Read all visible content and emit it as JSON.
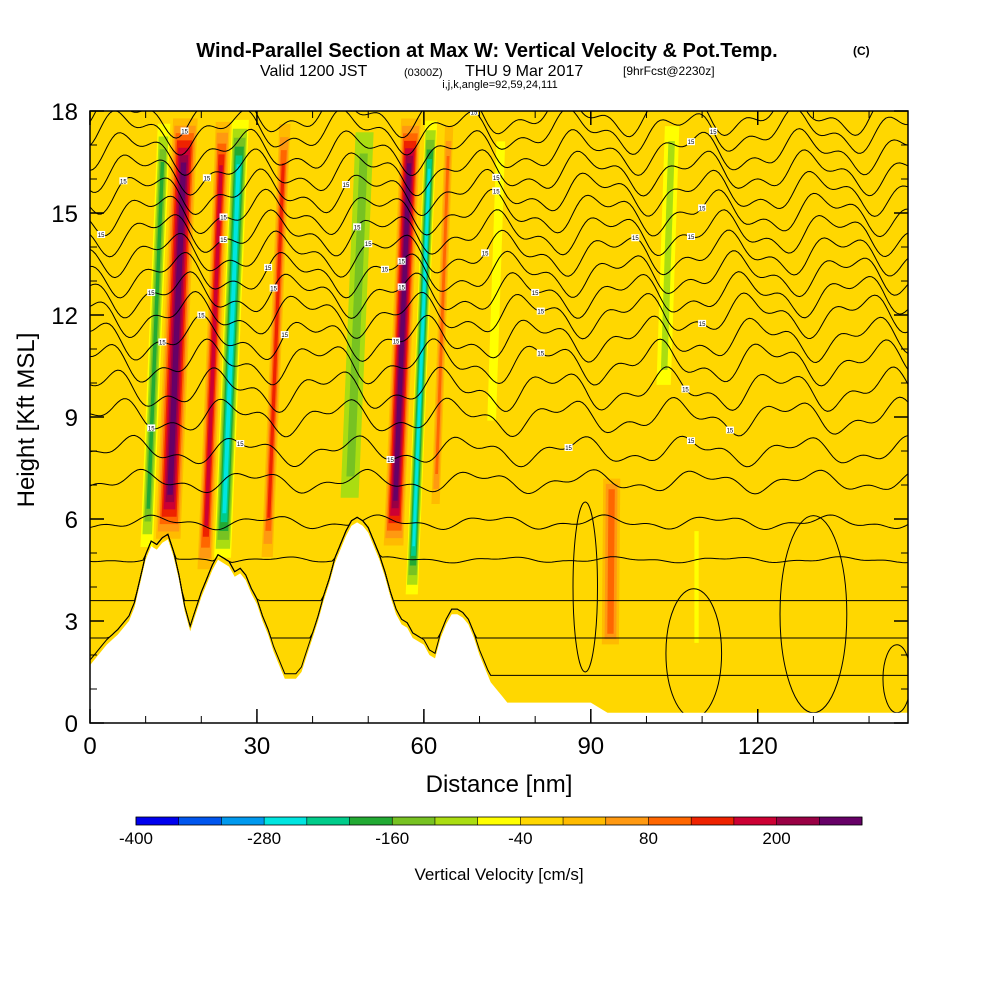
{
  "titles": {
    "main": "Wind-Parallel Section at Max W: Vertical Velocity & Pot.Temp.",
    "main_suffix": "(C)",
    "valid_prefix": "Valid 1200 JST",
    "valid_utc": "(0300Z)",
    "valid_date": "THU 9 Mar 2017",
    "forecast": "[9hrFcst@2230z]",
    "indices": "i,j,k,angle=92,59,24,111"
  },
  "chart_data": {
    "type": "heatmap",
    "xlabel": "Distance [nm]",
    "ylabel": "Height [Kft MSL]",
    "xlim": [
      0,
      147
    ],
    "ylim": [
      0,
      18
    ],
    "x_ticks": [
      0,
      30,
      60,
      90,
      120
    ],
    "x_minor_step": 10,
    "y_ticks": [
      0,
      3,
      6,
      9,
      12,
      15,
      18
    ],
    "y_minor_step": 1,
    "colorbar": {
      "label": "Vertical Velocity [cm/s]",
      "min": -400,
      "step": 40,
      "tick_labels": [
        -400,
        -280,
        -160,
        -40,
        80,
        200
      ],
      "colors": [
        "#0000ee",
        "#0055ee",
        "#0099ee",
        "#00e5e0",
        "#00cc8a",
        "#22aa33",
        "#77c222",
        "#aadd11",
        "#ffff00",
        "#ffd700",
        "#ffbb00",
        "#ff9911",
        "#ff6600",
        "#ee2200",
        "#cc0033",
        "#990044",
        "#660066"
      ]
    },
    "background_color": "#ffd700",
    "terrain": [
      [
        0,
        1.7
      ],
      [
        1.5,
        2
      ],
      [
        3,
        2.3
      ],
      [
        5,
        2.6
      ],
      [
        7,
        3
      ],
      [
        8,
        3.4
      ],
      [
        9,
        4.1
      ],
      [
        10,
        4.8
      ],
      [
        11,
        5.2
      ],
      [
        12,
        5.1
      ],
      [
        13,
        5.3
      ],
      [
        14,
        5.4
      ],
      [
        15,
        4.9
      ],
      [
        16,
        4.2
      ],
      [
        17,
        3.3
      ],
      [
        18,
        2.7
      ],
      [
        19,
        3.2
      ],
      [
        20,
        3.7
      ],
      [
        21,
        4.1
      ],
      [
        22,
        4.5
      ],
      [
        23,
        4.8
      ],
      [
        24,
        4.7
      ],
      [
        25,
        4.6
      ],
      [
        26,
        4.3
      ],
      [
        27,
        4.4
      ],
      [
        28,
        4.2
      ],
      [
        29,
        3.8
      ],
      [
        30,
        3.5
      ],
      [
        31,
        3
      ],
      [
        32,
        2.6
      ],
      [
        33,
        2.1
      ],
      [
        34,
        1.7
      ],
      [
        35,
        1.3
      ],
      [
        36,
        1.3
      ],
      [
        37,
        1.3
      ],
      [
        38,
        1.5
      ],
      [
        39,
        2
      ],
      [
        40,
        2.5
      ],
      [
        41,
        3
      ],
      [
        42,
        3.6
      ],
      [
        43,
        4.1
      ],
      [
        44,
        4.7
      ],
      [
        45,
        5.1
      ],
      [
        46,
        5.5
      ],
      [
        47,
        5.8
      ],
      [
        48,
        5.9
      ],
      [
        49,
        5.8
      ],
      [
        50,
        5.6
      ],
      [
        51,
        5.2
      ],
      [
        52,
        4.8
      ],
      [
        53,
        4.3
      ],
      [
        54,
        3.7
      ],
      [
        55,
        3.2
      ],
      [
        56,
        2.9
      ],
      [
        57,
        2.8
      ],
      [
        58,
        2.5
      ],
      [
        59,
        2.4
      ],
      [
        60,
        2.3
      ],
      [
        61,
        2
      ],
      [
        62,
        1.9
      ],
      [
        63,
        2.5
      ],
      [
        64,
        2.9
      ],
      [
        65,
        3.2
      ],
      [
        66,
        3.2
      ],
      [
        67,
        3.1
      ],
      [
        68,
        2.9
      ],
      [
        69,
        2.5
      ],
      [
        70,
        2
      ],
      [
        71,
        1.6
      ],
      [
        72,
        1.2
      ],
      [
        73,
        1
      ],
      [
        74,
        0.8
      ],
      [
        75,
        0.6
      ],
      [
        85,
        0.6
      ],
      [
        90,
        0.6
      ],
      [
        93,
        0.3
      ],
      [
        100,
        0.3
      ],
      [
        110,
        0.3
      ],
      [
        120,
        0.3
      ],
      [
        130,
        0.3
      ],
      [
        140,
        0.3
      ],
      [
        147,
        0.3
      ]
    ],
    "features": [
      {
        "name": "updraft",
        "x0": 11.5,
        "x1": 16.5,
        "y0": 5.2,
        "y1": 18,
        "slope": 0.25,
        "v": 250
      },
      {
        "name": "downdraft",
        "x0": 8.7,
        "x1": 11.5,
        "y0": 4.8,
        "y1": 18,
        "slope": 0.25,
        "v": -190
      },
      {
        "name": "updraft",
        "x0": 19,
        "x1": 22,
        "y0": 4.2,
        "y1": 18,
        "slope": 0.25,
        "v": 160
      },
      {
        "name": "downdraft",
        "x0": 22,
        "x1": 25.5,
        "y0": 4.6,
        "y1": 18,
        "slope": 0.25,
        "v": -260
      },
      {
        "name": "updraft",
        "x0": 30.5,
        "x1": 33,
        "y0": 4.5,
        "y1": 18,
        "slope": 0.25,
        "v": 120
      },
      {
        "name": "downdraft",
        "x0": 44,
        "x1": 49,
        "y0": 6,
        "y1": 18,
        "slope": 0.25,
        "v": -130
      },
      {
        "name": "updraft",
        "x0": 52.5,
        "x1": 56.5,
        "y0": 5,
        "y1": 18,
        "slope": 0.25,
        "v": 240
      },
      {
        "name": "downdraft",
        "x0": 56.5,
        "x1": 59,
        "y0": 3.5,
        "y1": 18,
        "slope": 0.25,
        "v": -270
      },
      {
        "name": "updraft",
        "x0": 61,
        "x1": 63,
        "y0": 6,
        "y1": 18,
        "slope": 0.22,
        "v": 80
      },
      {
        "name": "downdraft",
        "x0": 70,
        "x1": 74,
        "y0": 8,
        "y1": 18,
        "slope": 0.2,
        "v": -60
      },
      {
        "name": "updraft",
        "x0": 91,
        "x1": 96,
        "y0": 2,
        "y1": 7.5,
        "slope": 0.05,
        "v": 110
      },
      {
        "name": "downdraft",
        "x0": 101,
        "x1": 105,
        "y0": 9.5,
        "y1": 18,
        "slope": 0.2,
        "v": -110
      },
      {
        "name": "downdraft",
        "x0": 108,
        "x1": 110,
        "y0": 2,
        "y1": 6,
        "slope": 0,
        "v": -45
      }
    ],
    "theta_contours": [
      {
        "base": 1.4,
        "labels": []
      },
      {
        "base": 2.5,
        "labels": []
      },
      {
        "base": 3.6,
        "labels": []
      },
      {
        "base": 4.8,
        "labels": []
      },
      {
        "base": 5.9,
        "labels": []
      },
      {
        "base": 7.1,
        "labels": []
      },
      {
        "base": 8,
        "labels": [
          {
            "x": 27,
            "t": "15"
          },
          {
            "x": 54,
            "t": "15"
          },
          {
            "x": 86,
            "t": "15"
          },
          {
            "x": 108,
            "t": "15"
          }
        ]
      },
      {
        "base": 9,
        "labels": [
          {
            "x": 11,
            "t": "15"
          },
          {
            "x": 115,
            "t": "15"
          }
        ]
      },
      {
        "base": 9.8,
        "labels": [
          {
            "x": 107,
            "t": "15"
          }
        ]
      },
      {
        "base": 10.6,
        "labels": [
          {
            "x": 81,
            "t": "15"
          }
        ]
      },
      {
        "base": 11.3,
        "labels": [
          {
            "x": 13,
            "t": "15"
          },
          {
            "x": 20,
            "t": "15"
          },
          {
            "x": 35,
            "t": "15"
          },
          {
            "x": 55,
            "t": "15"
          }
        ]
      },
      {
        "base": 12,
        "labels": [
          {
            "x": 81,
            "t": "15"
          },
          {
            "x": 110,
            "t": "15"
          }
        ]
      },
      {
        "base": 12.6,
        "labels": [
          {
            "x": 11,
            "t": "15"
          },
          {
            "x": 33,
            "t": "15"
          },
          {
            "x": 56,
            "t": "15"
          },
          {
            "x": 80,
            "t": "15"
          }
        ]
      },
      {
        "base": 13.2,
        "labels": [
          {
            "x": 32,
            "t": "15"
          },
          {
            "x": 53,
            "t": "15"
          },
          {
            "x": 56,
            "t": "15"
          }
        ]
      },
      {
        "base": 13.8,
        "labels": [
          {
            "x": 50,
            "t": "15"
          },
          {
            "x": 71,
            "t": "15"
          },
          {
            "x": 98,
            "t": "15"
          }
        ]
      },
      {
        "base": 14.4,
        "labels": [
          {
            "x": 24,
            "t": "15"
          },
          {
            "x": 48,
            "t": "15"
          },
          {
            "x": 108,
            "t": "15"
          }
        ]
      },
      {
        "base": 15,
        "labels": [
          {
            "x": 2,
            "t": "15"
          },
          {
            "x": 24,
            "t": "15"
          },
          {
            "x": 73,
            "t": "15"
          },
          {
            "x": 110,
            "t": "15"
          }
        ]
      },
      {
        "base": 15.6,
        "labels": [
          {
            "x": 6,
            "t": "15"
          },
          {
            "x": 46,
            "t": "15"
          },
          {
            "x": 73,
            "t": "15"
          }
        ]
      },
      {
        "base": 16.2,
        "labels": [
          {
            "x": 21,
            "t": "15"
          }
        ]
      },
      {
        "base": 16.8,
        "labels": [
          {
            "x": 108,
            "t": "15"
          }
        ]
      },
      {
        "base": 17.4,
        "labels": [
          {
            "x": 69,
            "t": "15"
          },
          {
            "x": 112,
            "t": "15"
          }
        ]
      },
      {
        "base": 17.9,
        "labels": [
          {
            "x": 17,
            "t": "15"
          }
        ]
      }
    ],
    "closed_contours": [
      {
        "cx": 108.5,
        "cy": 2.05,
        "rx": 5,
        "ry": 1.9
      },
      {
        "cx": 130,
        "cy": 3.2,
        "rx": 6,
        "ry": 2.9
      },
      {
        "cx": 89,
        "cy": 4,
        "rx": 2.2,
        "ry": 2.5
      },
      {
        "cx": 145,
        "cy": 1.3,
        "rx": 2.5,
        "ry": 1
      }
    ]
  }
}
